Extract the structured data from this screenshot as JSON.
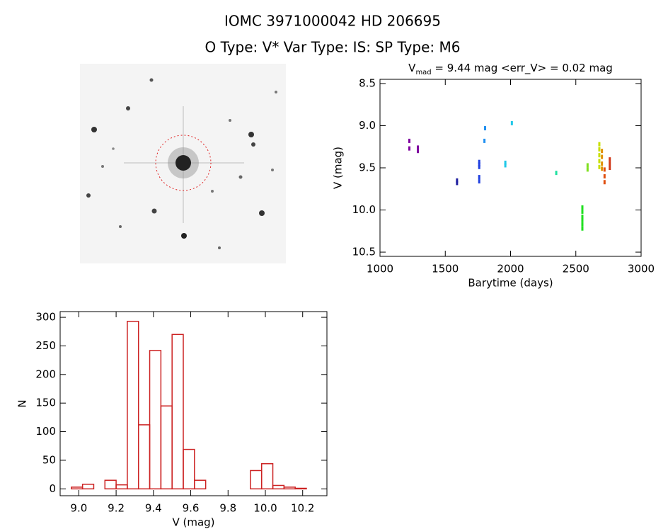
{
  "header": {
    "title": "IOMC 3971000042    HD 206695",
    "subtitle": "O Type: V*  Var Type: IS:  SP Type: M6"
  },
  "chart_data": [
    {
      "type": "scatter",
      "title": [
        "V",
        "mad",
        " = 9.44 mag <err_V> = 0.02 mag"
      ],
      "xlabel": "Barytime (days)",
      "ylabel": "V (mag)",
      "xlim": [
        1000,
        3000
      ],
      "ylim": [
        10.55,
        8.45
      ],
      "xticks": [
        1000,
        1500,
        2000,
        2500,
        3000
      ],
      "yticks": [
        8.5,
        {
          "value": 9,
          "label": "9.0"
        },
        9.5,
        {
          "value": 10,
          "label": "10.0"
        },
        10.5
      ],
      "series": [
        {
          "color": "#8000a0",
          "x": [
            1225,
            1225,
            1290,
            1290
          ],
          "values": [
            9.18,
            9.27,
            9.26,
            9.3
          ]
        },
        {
          "color": "#2020a0",
          "x": [
            1590,
            1590
          ],
          "values": [
            9.65,
            9.68
          ]
        },
        {
          "color": "#2040e0",
          "x": [
            1760,
            1760,
            1760,
            1760,
            1760
          ],
          "values": [
            9.43,
            9.46,
            9.49,
            9.61,
            9.66
          ]
        },
        {
          "color": "#2090f0",
          "x": [
            1805,
            1800
          ],
          "values": [
            9.03,
            9.18
          ]
        },
        {
          "color": "#20c8e8",
          "x": [
            1960,
            1960,
            2010
          ],
          "values": [
            9.44,
            9.47,
            8.97
          ]
        },
        {
          "color": "#20e0a0",
          "x": [
            2350
          ],
          "values": [
            9.56
          ]
        },
        {
          "color": "#20e020",
          "x": [
            2550,
            2550,
            2550,
            2550,
            2550,
            2550
          ],
          "values": [
            9.97,
            10.02,
            10.08,
            10.12,
            10.17,
            10.22
          ]
        },
        {
          "color": "#80e020",
          "x": [
            2590,
            2590
          ],
          "values": [
            9.47,
            9.52
          ]
        },
        {
          "color": "#c8e000",
          "x": [
            2680,
            2680,
            2680,
            2680,
            2680
          ],
          "values": [
            9.22,
            9.28,
            9.35,
            9.42,
            9.49
          ]
        },
        {
          "color": "#e09000",
          "x": [
            2700,
            2700,
            2700,
            2700
          ],
          "values": [
            9.3,
            9.37,
            9.45,
            9.51
          ]
        },
        {
          "color": "#e05010",
          "x": [
            2720,
            2720,
            2720
          ],
          "values": [
            9.52,
            9.6,
            9.67
          ]
        },
        {
          "color": "#d03818",
          "x": [
            2760,
            2760,
            2760
          ],
          "values": [
            9.4,
            9.45,
            9.5
          ]
        }
      ]
    },
    {
      "type": "histogram",
      "xlabel": "V (mag)",
      "ylabel": "N",
      "xlim": [
        8.9,
        10.33
      ],
      "ylim": [
        -12,
        310
      ],
      "xticks": [
        {
          "value": 9,
          "label": "9.0"
        },
        9.2,
        9.4,
        9.6,
        9.8,
        {
          "value": 10,
          "label": "10.0"
        },
        10.2
      ],
      "yticks": [
        0,
        50,
        100,
        150,
        200,
        250,
        300
      ],
      "color": "#cc2222",
      "bins": [
        8.96,
        9.02,
        9.08,
        9.14,
        9.2,
        9.26,
        9.32,
        9.38,
        9.44,
        9.5,
        9.56,
        9.62,
        9.68,
        9.74,
        9.8,
        9.86,
        9.92,
        9.98,
        10.04,
        10.1,
        10.16,
        10.22
      ],
      "values": [
        3,
        8,
        0,
        15,
        7,
        293,
        112,
        242,
        145,
        270,
        69,
        15,
        0,
        0,
        0,
        0,
        32,
        44,
        6,
        3,
        1
      ]
    }
  ]
}
